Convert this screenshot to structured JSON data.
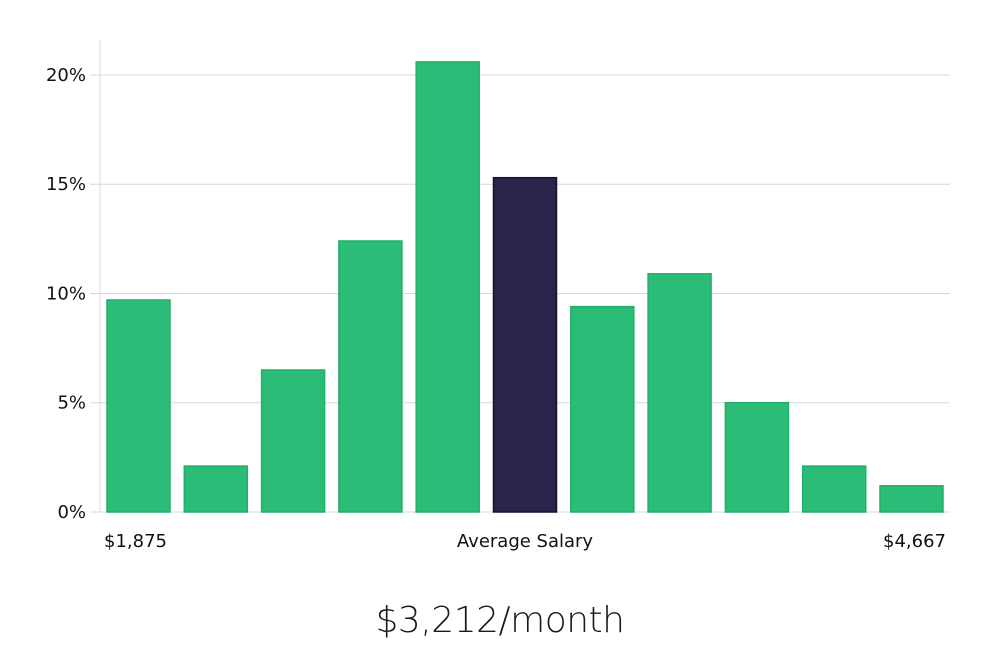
{
  "headline": "$3,212/month",
  "chart_data": {
    "type": "bar",
    "title": "",
    "xlabel": "",
    "ylabel": "",
    "ylim": [
      0,
      21.6
    ],
    "yticks": [
      "0%",
      "5%",
      "10%",
      "15%",
      "20%"
    ],
    "ytick_values": [
      0,
      5,
      10,
      15,
      20
    ],
    "grid": true,
    "x_labels": {
      "left": "$1,875",
      "center": "Average Salary",
      "right": "$4,667"
    },
    "values": [
      9.7,
      2.1,
      6.5,
      12.4,
      20.6,
      15.3,
      9.4,
      10.9,
      5.0,
      2.1,
      1.2
    ],
    "highlight_index": 5,
    "colors": {
      "bar": "#2bbd77",
      "bar_stroke": "#24ad6a",
      "highlight": "#29244a",
      "highlight_stroke": "#15122d"
    }
  }
}
